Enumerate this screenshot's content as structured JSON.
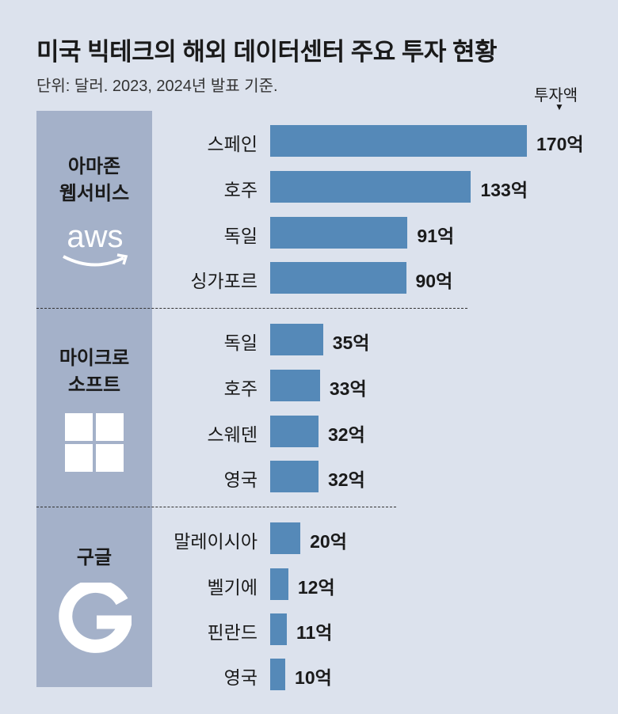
{
  "title": "미국 빅테크의 해외 데이터센터 주요 투자 현황",
  "subtitle": "단위: 달러. 2023, 2024년 발표 기준.",
  "value_label": "투자액",
  "colors": {
    "background": "#dce2ed",
    "panel": "#a4b1c9",
    "bar": "#5589b8"
  },
  "groups": [
    {
      "name_lines": [
        "아마존",
        "웹서비스"
      ],
      "logo": "aws-logo"
    },
    {
      "name_lines": [
        "마이크로",
        "소프트"
      ],
      "logo": "windows-logo"
    },
    {
      "name_lines": [
        "구글"
      ],
      "logo": "google-g-logo"
    }
  ],
  "chart_data": {
    "type": "bar",
    "orientation": "horizontal",
    "title": "미국 빅테크의 해외 데이터센터 주요 투자 현황",
    "subtitle": "단위: 달러. 2023, 2024년 발표 기준.",
    "value_label": "투자액",
    "rows": [
      {
        "group": "아마존 웹서비스",
        "category": "스페인",
        "value": 170,
        "label": "170억"
      },
      {
        "group": "아마존 웹서비스",
        "category": "호주",
        "value": 133,
        "label": "133억"
      },
      {
        "group": "아마존 웹서비스",
        "category": "독일",
        "value": 91,
        "label": "91억"
      },
      {
        "group": "아마존 웹서비스",
        "category": "싱가포르",
        "value": 90,
        "label": "90억"
      },
      {
        "group": "마이크로소프트",
        "category": "독일",
        "value": 35,
        "label": "35억"
      },
      {
        "group": "마이크로소프트",
        "category": "호주",
        "value": 33,
        "label": "33억"
      },
      {
        "group": "마이크로소프트",
        "category": "스웨덴",
        "value": 32,
        "label": "32억"
      },
      {
        "group": "마이크로소프트",
        "category": "영국",
        "value": 32,
        "label": "32억"
      },
      {
        "group": "구글",
        "category": "말레이시아",
        "value": 20,
        "label": "20억"
      },
      {
        "group": "구글",
        "category": "벨기에",
        "value": 12,
        "label": "12억"
      },
      {
        "group": "구글",
        "category": "핀란드",
        "value": 11,
        "label": "11억"
      },
      {
        "group": "구글",
        "category": "영국",
        "value": 10,
        "label": "10억"
      }
    ]
  }
}
